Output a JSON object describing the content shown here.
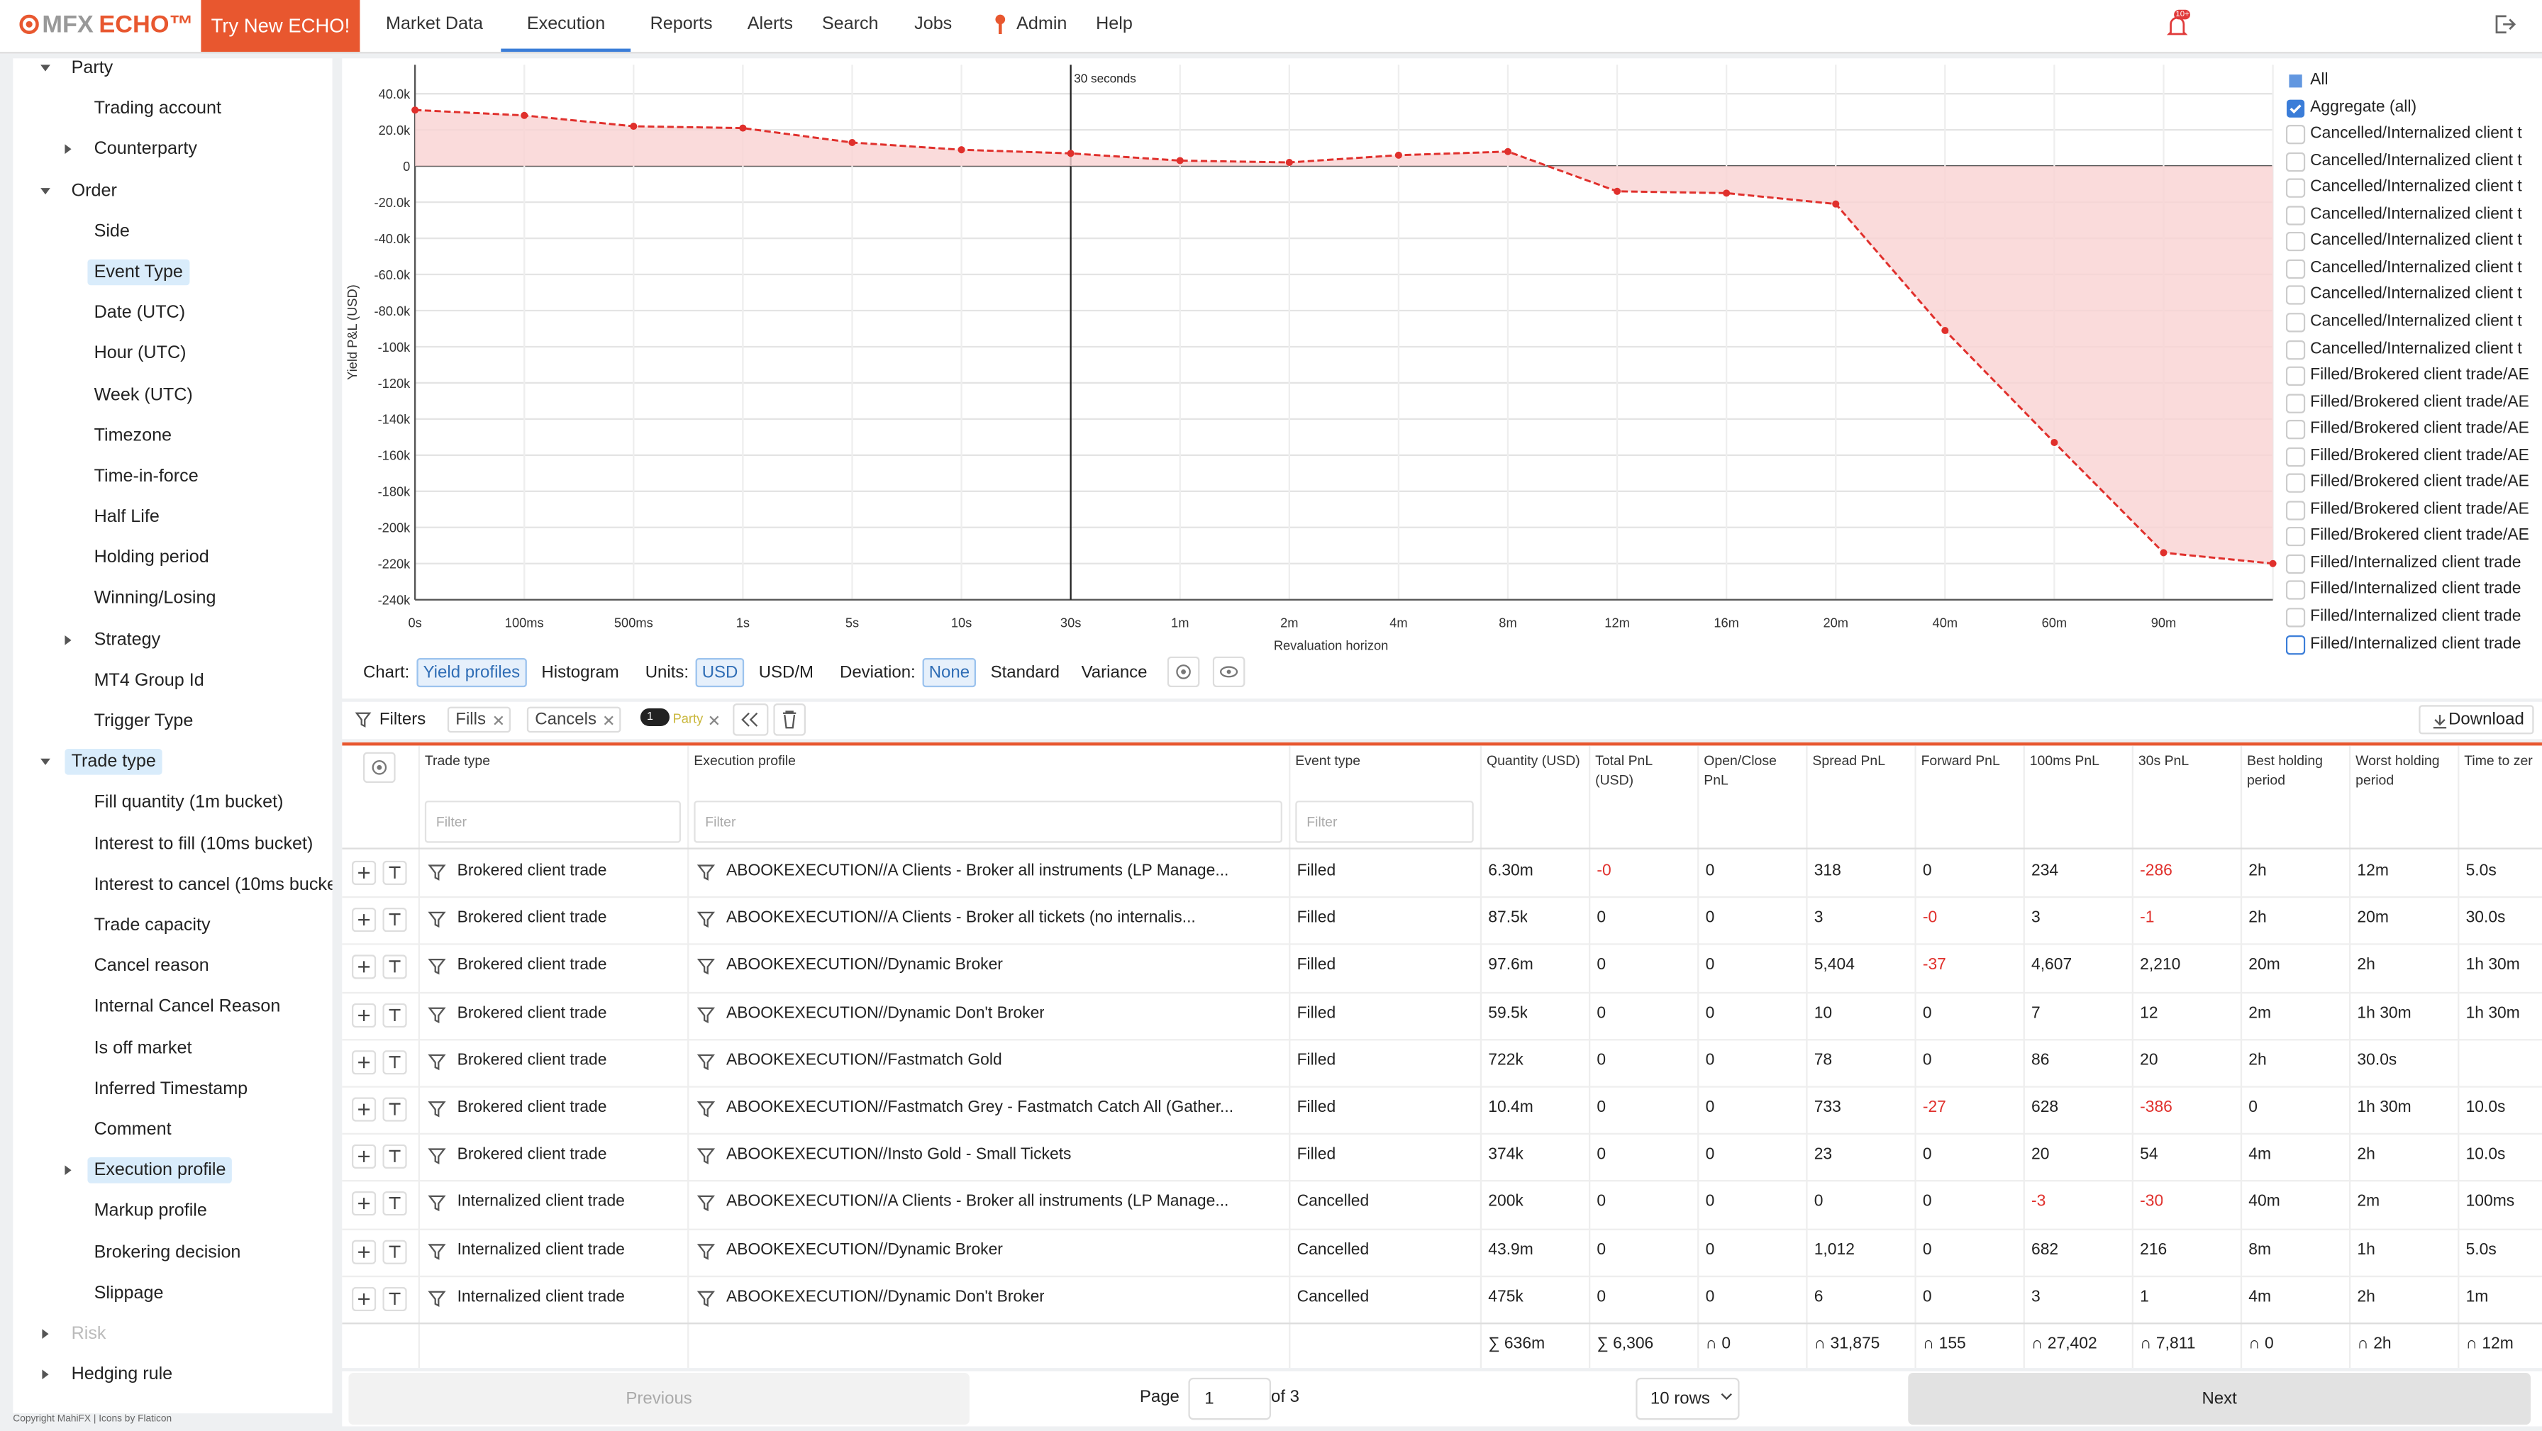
{
  "nav": {
    "logo": "MFX",
    "logo_suffix": "ECHO™",
    "cta": "Try New ECHO!",
    "items": [
      "Market Data",
      "Execution",
      "Reports",
      "Alerts",
      "Search",
      "Jobs",
      "Admin",
      "Help"
    ],
    "active": "Execution",
    "notifications": "10+"
  },
  "sidebar": {
    "items": [
      {
        "label": "Party",
        "level": 0,
        "toggle": "open"
      },
      {
        "label": "Trading account",
        "level": 1
      },
      {
        "label": "Counterparty",
        "level": 1,
        "toggle": "closed"
      },
      {
        "label": "Order",
        "level": 0,
        "toggle": "open"
      },
      {
        "label": "Side",
        "level": 1
      },
      {
        "label": "Event Type",
        "level": 1,
        "selected": true
      },
      {
        "label": "Date (UTC)",
        "level": 1
      },
      {
        "label": "Hour (UTC)",
        "level": 1
      },
      {
        "label": "Week (UTC)",
        "level": 1
      },
      {
        "label": "Timezone",
        "level": 1
      },
      {
        "label": "Time-in-force",
        "level": 1
      },
      {
        "label": "Half Life",
        "level": 1
      },
      {
        "label": "Holding period",
        "level": 1
      },
      {
        "label": "Winning/Losing",
        "level": 1
      },
      {
        "label": "Strategy",
        "level": 1,
        "toggle": "closed"
      },
      {
        "label": "MT4 Group Id",
        "level": 1
      },
      {
        "label": "Trigger Type",
        "level": 1
      },
      {
        "label": "Trade type",
        "level": 0,
        "toggle": "open",
        "selected": true
      },
      {
        "label": "Fill quantity (1m bucket)",
        "level": 1
      },
      {
        "label": "Interest to fill (10ms bucket)",
        "level": 1
      },
      {
        "label": "Interest to cancel (10ms bucket",
        "level": 1
      },
      {
        "label": "Trade capacity",
        "level": 1
      },
      {
        "label": "Cancel reason",
        "level": 1
      },
      {
        "label": "Internal Cancel Reason",
        "level": 1
      },
      {
        "label": "Is off market",
        "level": 1
      },
      {
        "label": "Inferred Timestamp",
        "level": 1
      },
      {
        "label": "Comment",
        "level": 1
      },
      {
        "label": "Execution profile",
        "level": 1,
        "toggle": "closed",
        "selected": true
      },
      {
        "label": "Markup profile",
        "level": 1
      },
      {
        "label": "Brokering decision",
        "level": 1
      },
      {
        "label": "Slippage",
        "level": 1
      },
      {
        "label": "Risk",
        "level": 0,
        "toggle": "closed",
        "disabled": true
      },
      {
        "label": "Hedging rule",
        "level": 0,
        "toggle": "closed"
      }
    ],
    "copyright": "Copyright MahiFX | Icons by Flaticon"
  },
  "chart_data": {
    "type": "line",
    "area": true,
    "ylabel": "Yield P&L (USD)",
    "xlabel": "Revaluation horizon",
    "categories": [
      "0s",
      "100ms",
      "500ms",
      "1s",
      "5s",
      "10s",
      "30s",
      "1m",
      "2m",
      "4m",
      "8m",
      "12m",
      "16m",
      "20m",
      "40m",
      "60m",
      "90m",
      null
    ],
    "series": [
      {
        "name": "Aggregate (all)",
        "color": "#e0302c",
        "fill": "#f9d2d2",
        "values": [
          31000,
          28000,
          22000,
          21000,
          13000,
          9000,
          7000,
          3000,
          2000,
          6000,
          8000,
          -14000,
          -15000,
          -21000,
          -91000,
          -153000,
          -214000,
          -220000
        ]
      }
    ],
    "ylim": [
      -240000,
      56000
    ],
    "yticks": [
      {
        "value": 40000,
        "label": "40.0k"
      },
      {
        "value": 20000,
        "label": "20.0k"
      },
      0,
      {
        "value": -20000,
        "label": "-20.0k"
      },
      {
        "value": -40000,
        "label": "-40.0k"
      },
      {
        "value": -60000,
        "label": "-60.0k"
      },
      {
        "value": -80000,
        "label": "-80.0k"
      },
      {
        "value": -100000,
        "label": "-100k"
      },
      {
        "value": -120000,
        "label": "-120k"
      },
      {
        "value": -140000,
        "label": "-140k"
      },
      {
        "value": -160000,
        "label": "-160k"
      },
      {
        "value": -180000,
        "label": "-180k"
      },
      {
        "value": -200000,
        "label": "-200k"
      },
      {
        "value": -220000,
        "label": "-220k"
      },
      {
        "value": -240000,
        "label": "-240k"
      }
    ],
    "grid": true,
    "marker": {
      "x": "30s",
      "label": "30 seconds"
    },
    "legend_all": "All",
    "legend_items": [
      "Cancelled/Internalized client t",
      "Cancelled/Internalized client t",
      "Cancelled/Internalized client t",
      "Cancelled/Internalized client t",
      "Cancelled/Internalized client t",
      "Cancelled/Internalized client t",
      "Cancelled/Internalized client t",
      "Cancelled/Internalized client t",
      "Cancelled/Internalized client t",
      "Filled/Brokered client trade/AE",
      "Filled/Brokered client trade/AE",
      "Filled/Brokered client trade/AE",
      "Filled/Brokered client trade/AE",
      "Filled/Brokered client trade/AE",
      "Filled/Brokered client trade/AE",
      "Filled/Brokered client trade/AE",
      "Filled/Internalized client trade",
      "Filled/Internalized client trade",
      "Filled/Internalized client trade",
      "Filled/Internalized client trade"
    ]
  },
  "chart_controls": [
    {
      "label": "Chart:",
      "options": [
        "Yield profiles",
        "Histogram"
      ],
      "selected": "Yield profiles"
    },
    {
      "label": "Units:",
      "options": [
        "USD",
        "USD/M"
      ],
      "selected": "USD"
    },
    {
      "label": "Deviation:",
      "options": [
        "None",
        "Standard",
        "Variance"
      ],
      "selected": "None"
    }
  ],
  "filters": {
    "label": "Filters",
    "chips": [
      "Fills",
      "Cancels"
    ],
    "party_count": "1",
    "party": "Party",
    "download": "Download"
  },
  "table": {
    "columns": [
      "Trade type",
      "Execution profile",
      "Event type",
      "Quantity (USD)",
      "Total PnL (USD)",
      "Open/Close PnL",
      "Spread PnL",
      "Forward PnL",
      "100ms PnL",
      "30s PnL",
      "Best holding period",
      "Worst holding period",
      "Time to zer"
    ],
    "filter_placeholder": "Filter",
    "rows": [
      [
        "Brokered client trade",
        "ABOOKEXECUTION//A Clients - Broker all instruments (LP Manage...",
        "Filled",
        "6.30m",
        "-0",
        "0",
        "318",
        "0",
        "234",
        "-286",
        "2h",
        "12m",
        "5.0s"
      ],
      [
        "Brokered client trade",
        "ABOOKEXECUTION//A Clients - Broker all tickets (no internalis...",
        "Filled",
        "87.5k",
        "0",
        "0",
        "3",
        "-0",
        "3",
        "-1",
        "2h",
        "20m",
        "30.0s"
      ],
      [
        "Brokered client trade",
        "ABOOKEXECUTION//Dynamic Broker",
        "Filled",
        "97.6m",
        "0",
        "0",
        "5,404",
        "-37",
        "4,607",
        "2,210",
        "20m",
        "2h",
        "1h 30m"
      ],
      [
        "Brokered client trade",
        "ABOOKEXECUTION//Dynamic Don't Broker",
        "Filled",
        "59.5k",
        "0",
        "0",
        "10",
        "0",
        "7",
        "12",
        "2m",
        "1h 30m",
        "1h 30m"
      ],
      [
        "Brokered client trade",
        "ABOOKEXECUTION//Fastmatch Gold",
        "Filled",
        "722k",
        "0",
        "0",
        "78",
        "0",
        "86",
        "20",
        "2h",
        "30.0s",
        null
      ],
      [
        "Brokered client trade",
        "ABOOKEXECUTION//Fastmatch Grey - Fastmatch Catch All (Gather...",
        "Filled",
        "10.4m",
        "0",
        "0",
        "733",
        "-27",
        "628",
        "-386",
        "0",
        "1h 30m",
        "10.0s"
      ],
      [
        "Brokered client trade",
        "ABOOKEXECUTION//Insto Gold - Small Tickets",
        "Filled",
        "374k",
        "0",
        "0",
        "23",
        "0",
        "20",
        "54",
        "4m",
        "2h",
        "10.0s"
      ],
      [
        "Internalized client trade",
        "ABOOKEXECUTION//A Clients - Broker all instruments (LP Manage...",
        "Cancelled",
        "200k",
        "0",
        "0",
        "0",
        "0",
        "-3",
        "-30",
        "40m",
        "2m",
        "100ms"
      ],
      [
        "Internalized client trade",
        "ABOOKEXECUTION//Dynamic Broker",
        "Cancelled",
        "43.9m",
        "0",
        "0",
        "1,012",
        "0",
        "682",
        "216",
        "8m",
        "1h",
        "5.0s"
      ],
      [
        "Internalized client trade",
        "ABOOKEXECUTION//Dynamic Don't Broker",
        "Cancelled",
        "475k",
        "0",
        "0",
        "6",
        "0",
        "3",
        "1",
        "4m",
        "2h",
        "1m"
      ]
    ],
    "totals": [
      "∑ 636m",
      "∑ 6,306",
      "∩ 0",
      "∩ 31,875",
      "∩ 155",
      "∩ 27,402",
      "∩ 7,811",
      "∩ 0",
      "∩ 2h",
      "∩ 12m"
    ]
  },
  "pagination": {
    "previous": "Previous",
    "page": "Page",
    "current": "1",
    "of": "of 3",
    "rows": "10 rows",
    "next": "Next"
  }
}
